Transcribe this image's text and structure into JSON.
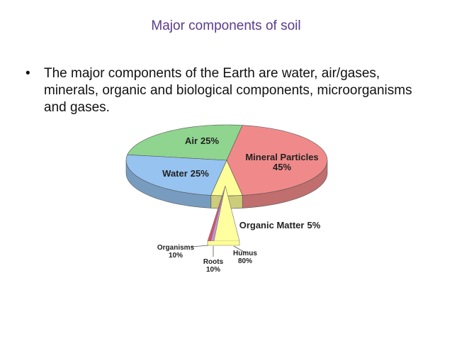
{
  "title": "Major components of soil",
  "bullets": [
    "The major components of the Earth are water, air/gases, minerals, organic and biological components, microorganisms and gases."
  ],
  "chart_data": [
    {
      "type": "pie",
      "categories": [
        "Air",
        "Mineral Particles",
        "Organic Matter",
        "Water"
      ],
      "values": [
        25,
        45,
        5,
        25
      ],
      "value_labels": [
        "25%",
        "45%",
        "5%",
        "25%"
      ],
      "colors": [
        "#8fd48f",
        "#f08a8a",
        "#ffff99",
        "#96c3f0"
      ]
    },
    {
      "type": "split-wedge",
      "categories": [
        "Organisms",
        "Roots",
        "Humus"
      ],
      "values": [
        10,
        10,
        80
      ],
      "value_labels": [
        "10%",
        "10%",
        "80%"
      ],
      "colors": [
        "#d8506a",
        "#c890d8",
        "#ffffa0"
      ]
    }
  ]
}
